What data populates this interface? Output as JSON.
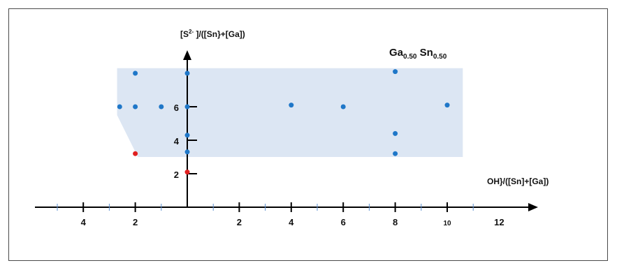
{
  "chart_data": {
    "type": "scatter",
    "y_axis_title_parts": {
      "main": "[S",
      "sup": "2-",
      "rest": " ]/([Sn}+[Ga])"
    },
    "x_axis_title": "OH}/([Sn]+[Ga])",
    "composition_label": {
      "ga": "Ga",
      "ga_sub": "0.50",
      "sn": " Sn",
      "sn_sub": "0.50"
    },
    "x_tick_labels": [
      {
        "v": -4,
        "t": "4"
      },
      {
        "v": -2,
        "t": "2"
      },
      {
        "v": 2,
        "t": "2"
      },
      {
        "v": 4,
        "t": "4"
      },
      {
        "v": 6,
        "t": "6"
      },
      {
        "v": 8,
        "t": "8"
      },
      {
        "v": 10,
        "t": "10"
      },
      {
        "v": 12,
        "t": "12"
      }
    ],
    "y_tick_labels": [
      {
        "v": 2,
        "t": "2"
      },
      {
        "v": 4,
        "t": "4"
      },
      {
        "v": 6,
        "t": "6"
      }
    ],
    "xlim": [
      -6,
      13.5
    ],
    "ylim": [
      0,
      10
    ],
    "region_polygon": [
      [
        -2.7,
        8.3
      ],
      [
        10.6,
        8.3
      ],
      [
        10.6,
        3.0
      ],
      [
        0,
        3.0
      ],
      [
        -1.9,
        3.0
      ],
      [
        -2.7,
        5.5
      ]
    ],
    "series": [
      {
        "color": "#1f77c8",
        "points": [
          [
            -2,
            8.0
          ],
          [
            0,
            8.0
          ],
          [
            8,
            8.1
          ],
          [
            -2.6,
            6.0
          ],
          [
            -2,
            6.0
          ],
          [
            -1,
            6.0
          ],
          [
            0,
            6.0
          ],
          [
            4,
            6.1
          ],
          [
            6,
            6.0
          ],
          [
            10,
            6.1
          ],
          [
            0,
            4.3
          ],
          [
            8,
            4.4
          ],
          [
            0,
            3.3
          ],
          [
            8,
            3.2
          ]
        ]
      },
      {
        "color": "#e02020",
        "points": [
          [
            -2,
            3.2
          ],
          [
            0,
            2.1
          ]
        ]
      }
    ],
    "grid": false,
    "region_color": "#dce6f3"
  }
}
